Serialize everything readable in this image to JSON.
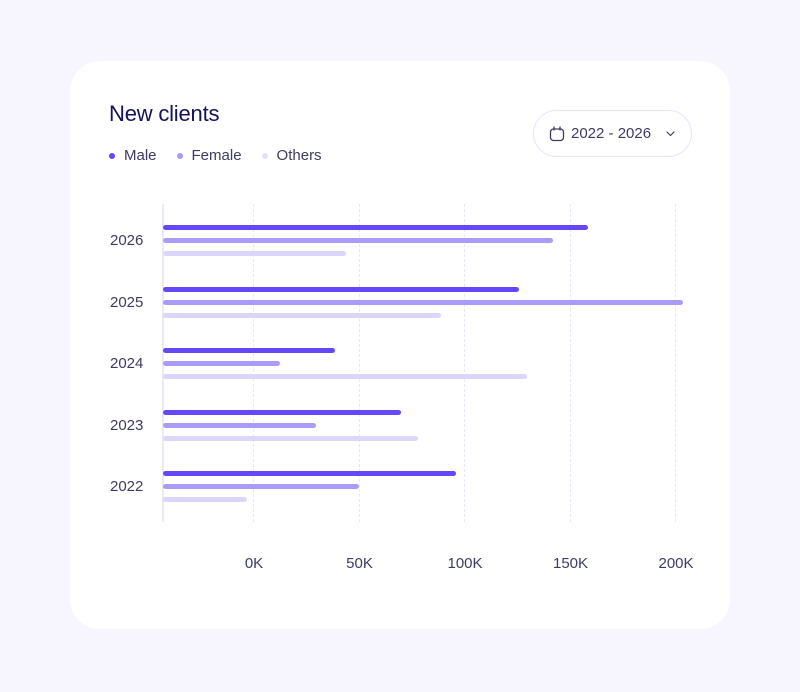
{
  "card": {
    "title": "New clients",
    "legend": [
      {
        "label": "Male",
        "color": "#6347f9"
      },
      {
        "label": "Female",
        "color": "#a99cf9"
      },
      {
        "label": "Others",
        "color": "#e4e0fd"
      }
    ],
    "range_picker": {
      "icon": "calendar-icon",
      "label": "2022 - 2026",
      "chevron": "chevron-down-icon"
    }
  },
  "colors": {
    "background": "#f7f6fe",
    "card": "#ffffff",
    "male": "#6347f9",
    "female": "#a99cf9",
    "others": "#dcd6fc",
    "title": "#14125a",
    "text": "#3d3b63"
  },
  "chart_data": {
    "type": "bar",
    "orientation": "horizontal",
    "title": "New clients",
    "xlabel": "",
    "ylabel": "",
    "categories": [
      "2026",
      "2025",
      "2024",
      "2023",
      "2022"
    ],
    "series": [
      {
        "name": "Male",
        "color": "#6347f9",
        "values": [
          159,
          126,
          39,
          70,
          96
        ]
      },
      {
        "name": "Female",
        "color": "#a99cf9",
        "values": [
          142,
          204,
          13,
          30,
          50
        ]
      },
      {
        "name": "Others",
        "color": "#dcd6fc",
        "values": [
          44,
          89,
          130,
          78,
          -3
        ]
      }
    ],
    "x_ticks": [
      "0K",
      "50K",
      "100K",
      "150K",
      "200K"
    ],
    "x_tick_values": [
      0,
      50,
      100,
      150,
      200
    ],
    "xlim": [
      -43,
      205
    ],
    "units": "K",
    "grid": {
      "x": true,
      "style": "dashed"
    },
    "legend_position": "top-left"
  }
}
